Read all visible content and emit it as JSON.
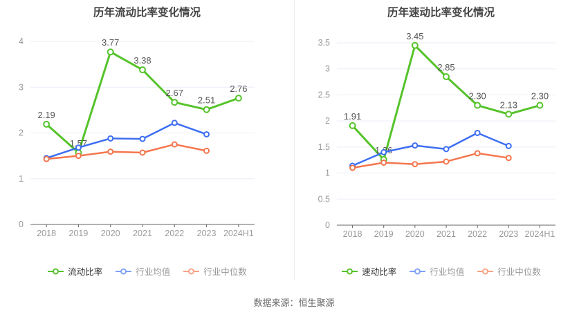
{
  "footer": {
    "text": "数据来源：恒生聚源"
  },
  "chart_data": [
    {
      "type": "line",
      "title": "历年流动比率变化情况",
      "categories": [
        "2018",
        "2019",
        "2020",
        "2021",
        "2022",
        "2023",
        "2024H1"
      ],
      "xlabel": "",
      "ylabel": "",
      "y_axis": {
        "min": 0,
        "max": 4,
        "interval": 1
      },
      "grid": true,
      "legend_position": "bottom",
      "series": [
        {
          "name": "流动比率",
          "color": "#55c32a",
          "values": [
            2.19,
            1.57,
            3.77,
            3.38,
            2.67,
            2.51,
            2.76
          ],
          "point_labels": [
            "2.19",
            "1.57",
            "3.77",
            "3.38",
            "2.67",
            "2.51",
            "2.76"
          ]
        },
        {
          "name": "行业均值",
          "color": "#3d6ef2",
          "values": [
            1.45,
            1.68,
            1.88,
            1.87,
            2.22,
            1.97
          ]
        },
        {
          "name": "行业中位数",
          "color": "#f5764e",
          "values": [
            1.43,
            1.5,
            1.59,
            1.57,
            1.75,
            1.61
          ]
        }
      ],
      "legend": [
        {
          "label": "流动比率",
          "marker_color": "#55c32a",
          "text_color": "#333333"
        },
        {
          "label": "行业均值",
          "marker_color": "#7ea1f6",
          "text_color": "#999999"
        },
        {
          "label": "行业中位数",
          "marker_color": "#f9a284",
          "text_color": "#999999"
        }
      ]
    },
    {
      "type": "line",
      "title": "历年速动比率变化情况",
      "categories": [
        "2018",
        "2019",
        "2020",
        "2021",
        "2022",
        "2023",
        "2024H1"
      ],
      "xlabel": "",
      "ylabel": "",
      "y_axis": {
        "min": 0,
        "max": 3.5,
        "interval": 0.5
      },
      "grid": true,
      "legend_position": "bottom",
      "series": [
        {
          "name": "速动比率",
          "color": "#55c32a",
          "values": [
            1.91,
            1.26,
            3.45,
            2.85,
            2.3,
            2.13,
            2.3
          ],
          "point_labels": [
            "1.91",
            "1.26",
            "3.45",
            "2.85",
            "2.30",
            "2.13",
            "2.30"
          ]
        },
        {
          "name": "行业均值",
          "color": "#3d6ef2",
          "values": [
            1.14,
            1.4,
            1.53,
            1.46,
            1.77,
            1.52
          ]
        },
        {
          "name": "行业中位数",
          "color": "#f5764e",
          "values": [
            1.1,
            1.2,
            1.17,
            1.22,
            1.38,
            1.29
          ]
        }
      ],
      "legend": [
        {
          "label": "速动比率",
          "marker_color": "#55c32a",
          "text_color": "#333333"
        },
        {
          "label": "行业均值",
          "marker_color": "#7ea1f6",
          "text_color": "#999999"
        },
        {
          "label": "行业中位数",
          "marker_color": "#f9a284",
          "text_color": "#999999"
        }
      ]
    }
  ],
  "style_colors": {
    "grid_line": "#e9eef7",
    "axis_line": "#666666",
    "axis_label": "#999999",
    "data_label": "#555555"
  }
}
